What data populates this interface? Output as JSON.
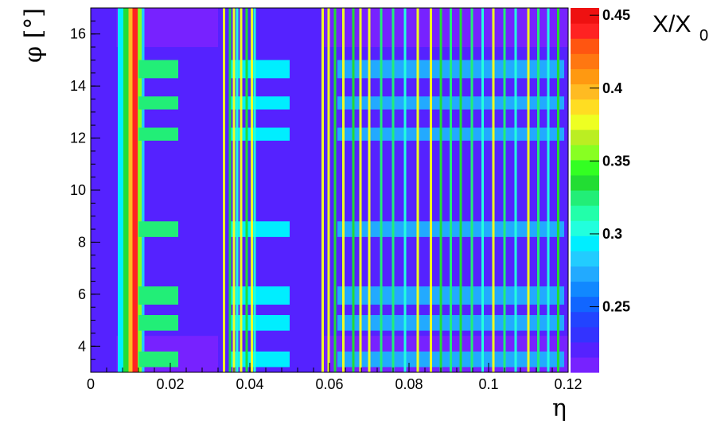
{
  "chart_data": {
    "type": "heatmap",
    "title": "",
    "xlabel": "η",
    "ylabel": "φ [°]",
    "zlabel": "X/X",
    "zlabel_subscript": "0",
    "xlim": [
      0,
      0.12
    ],
    "ylim": [
      3,
      17
    ],
    "zlim": [
      0.205,
      0.455
    ],
    "x_ticks": [
      {
        "value": 0,
        "label": "0"
      },
      {
        "value": 0.02,
        "label": "0.02"
      },
      {
        "value": 0.04,
        "label": "0.04"
      },
      {
        "value": 0.06,
        "label": "0.06"
      },
      {
        "value": 0.08,
        "label": "0.08"
      },
      {
        "value": 0.1,
        "label": "0.1"
      },
      {
        "value": 0.12,
        "label": "0.12"
      }
    ],
    "y_ticks": [
      {
        "value": 4,
        "label": "4"
      },
      {
        "value": 6,
        "label": "6"
      },
      {
        "value": 8,
        "label": "8"
      },
      {
        "value": 10,
        "label": "10"
      },
      {
        "value": 12,
        "label": "12"
      },
      {
        "value": 14,
        "label": "14"
      },
      {
        "value": 16,
        "label": "16"
      }
    ],
    "z_ticks": [
      {
        "value": 0.25,
        "label": "0.25"
      },
      {
        "value": 0.3,
        "label": "0.3"
      },
      {
        "value": 0.35,
        "label": "0.35"
      },
      {
        "value": 0.4,
        "label": "0.4"
      },
      {
        "value": 0.45,
        "label": "0.45"
      }
    ],
    "palette": [
      "#7722ff",
      "#5522ff",
      "#3333ff",
      "#2244ff",
      "#1166ff",
      "#1188ff",
      "#22aaff",
      "#22ccff",
      "#00eeff",
      "#22ffdd",
      "#22ffaa",
      "#22ee77",
      "#22dd33",
      "#33ff22",
      "#88ff22",
      "#bbee22",
      "#eeff22",
      "#ffdd22",
      "#ffbb22",
      "#ff9911",
      "#ff7711",
      "#ff5511",
      "#ff2222",
      "#ee1111"
    ],
    "regions": {
      "background_value": 0.222,
      "top_band": {
        "phi": [
          15.5,
          17.0
        ],
        "value": 0.208
      },
      "bottom_band": {
        "phi": [
          3.0,
          4.4
        ],
        "value": 0.208
      },
      "left_low_strip": {
        "eta": [
          0.0,
          0.0065
        ],
        "value": 0.222
      }
    },
    "eta_columns": [
      {
        "eta": [
          0.0068,
          0.0082
        ],
        "value": 0.29
      },
      {
        "eta": [
          0.0082,
          0.0095
        ],
        "value": 0.33
      },
      {
        "eta": [
          0.0095,
          0.0105
        ],
        "value": 0.4
      },
      {
        "eta": [
          0.0105,
          0.0118
        ],
        "value": 0.44
      },
      {
        "eta": [
          0.0118,
          0.0128
        ],
        "value": 0.36
      },
      {
        "eta": [
          0.0128,
          0.0135
        ],
        "value": 0.28
      },
      {
        "eta": [
          0.032,
          0.058
        ],
        "value": 0.218
      }
    ],
    "phi_bands": [
      {
        "phi": [
          14.3,
          15.0
        ],
        "eta": [
          0.012,
          0.022
        ],
        "value": 0.32
      },
      {
        "phi": [
          13.1,
          13.6
        ],
        "eta": [
          0.012,
          0.022
        ],
        "value": 0.32
      },
      {
        "phi": [
          11.9,
          12.4
        ],
        "eta": [
          0.012,
          0.022
        ],
        "value": 0.32
      },
      {
        "phi": [
          8.2,
          8.8
        ],
        "eta": [
          0.012,
          0.022
        ],
        "value": 0.32
      },
      {
        "phi": [
          5.6,
          6.3
        ],
        "eta": [
          0.012,
          0.022
        ],
        "value": 0.32
      },
      {
        "phi": [
          4.6,
          5.2
        ],
        "eta": [
          0.012,
          0.022
        ],
        "value": 0.32
      },
      {
        "phi": [
          3.2,
          3.8
        ],
        "eta": [
          0.012,
          0.022
        ],
        "value": 0.32
      },
      {
        "phi": [
          14.3,
          15.0
        ],
        "eta": [
          0.035,
          0.05
        ],
        "value": 0.29
      },
      {
        "phi": [
          13.1,
          13.6
        ],
        "eta": [
          0.035,
          0.05
        ],
        "value": 0.29
      },
      {
        "phi": [
          11.9,
          12.4
        ],
        "eta": [
          0.035,
          0.05
        ],
        "value": 0.29
      },
      {
        "phi": [
          8.2,
          8.8
        ],
        "eta": [
          0.035,
          0.05
        ],
        "value": 0.29
      },
      {
        "phi": [
          5.6,
          6.3
        ],
        "eta": [
          0.035,
          0.05
        ],
        "value": 0.29
      },
      {
        "phi": [
          4.6,
          5.2
        ],
        "eta": [
          0.035,
          0.05
        ],
        "value": 0.29
      },
      {
        "phi": [
          3.2,
          3.8
        ],
        "eta": [
          0.035,
          0.05
        ],
        "value": 0.29
      },
      {
        "phi": [
          14.3,
          15.0
        ],
        "eta": [
          0.062,
          0.119
        ],
        "value": 0.27
      },
      {
        "phi": [
          13.1,
          13.6
        ],
        "eta": [
          0.062,
          0.119
        ],
        "value": 0.27
      },
      {
        "phi": [
          11.9,
          12.4
        ],
        "eta": [
          0.062,
          0.119
        ],
        "value": 0.27
      },
      {
        "phi": [
          8.2,
          8.8
        ],
        "eta": [
          0.062,
          0.119
        ],
        "value": 0.27
      },
      {
        "phi": [
          5.6,
          6.3
        ],
        "eta": [
          0.062,
          0.119
        ],
        "value": 0.27
      },
      {
        "phi": [
          4.6,
          5.2
        ],
        "eta": [
          0.062,
          0.119
        ],
        "value": 0.27
      },
      {
        "phi": [
          3.2,
          3.8
        ],
        "eta": [
          0.062,
          0.119
        ],
        "value": 0.27
      }
    ],
    "lines": [
      {
        "eta": 0.0335,
        "value": 0.38
      },
      {
        "eta": 0.035,
        "value": 0.34
      },
      {
        "eta": 0.036,
        "value": 0.38
      },
      {
        "eta": 0.0368,
        "value": 0.3
      },
      {
        "eta": 0.0378,
        "value": 0.38
      },
      {
        "eta": 0.0392,
        "value": 0.34
      },
      {
        "eta": 0.0405,
        "value": 0.38
      },
      {
        "eta": 0.0412,
        "value": 0.3
      },
      {
        "eta": 0.0583,
        "value": 0.38
      },
      {
        "eta": 0.0598,
        "value": 0.38
      },
      {
        "eta": 0.0614,
        "value": 0.34
      },
      {
        "eta": 0.0635,
        "value": 0.38
      },
      {
        "eta": 0.066,
        "value": 0.34
      },
      {
        "eta": 0.0678,
        "value": 0.38
      },
      {
        "eta": 0.07,
        "value": 0.38
      },
      {
        "eta": 0.073,
        "value": 0.32
      },
      {
        "eta": 0.076,
        "value": 0.32
      },
      {
        "eta": 0.079,
        "value": 0.3
      },
      {
        "eta": 0.0822,
        "value": 0.38
      },
      {
        "eta": 0.0855,
        "value": 0.38
      },
      {
        "eta": 0.088,
        "value": 0.34
      },
      {
        "eta": 0.0905,
        "value": 0.32
      },
      {
        "eta": 0.093,
        "value": 0.34
      },
      {
        "eta": 0.0958,
        "value": 0.32
      },
      {
        "eta": 0.0985,
        "value": 0.3
      },
      {
        "eta": 0.1012,
        "value": 0.38
      },
      {
        "eta": 0.104,
        "value": 0.32
      },
      {
        "eta": 0.1068,
        "value": 0.3
      },
      {
        "eta": 0.11,
        "value": 0.38
      },
      {
        "eta": 0.1125,
        "value": 0.32
      },
      {
        "eta": 0.115,
        "value": 0.3
      },
      {
        "eta": 0.1175,
        "value": 0.34
      }
    ]
  }
}
